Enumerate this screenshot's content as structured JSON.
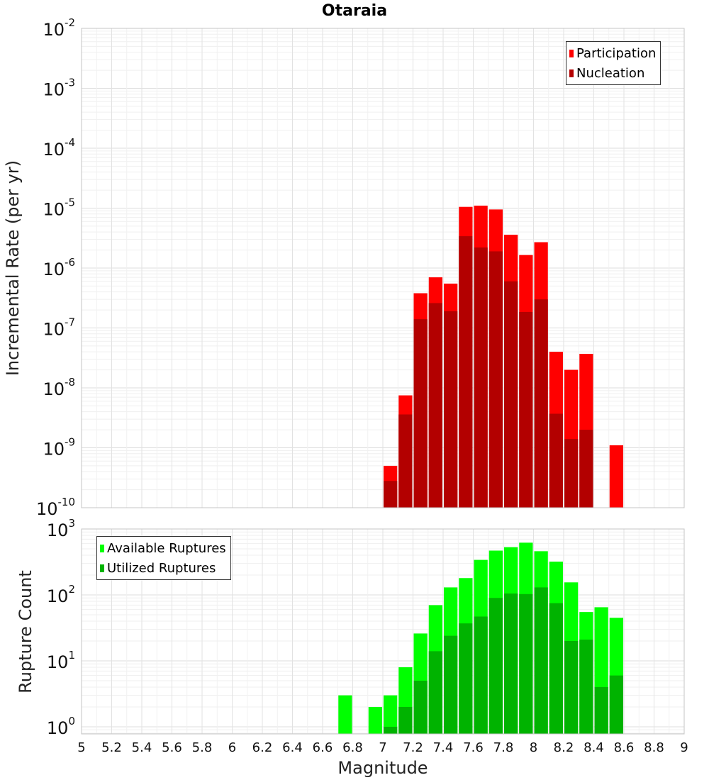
{
  "chart_data": [
    {
      "type": "bar",
      "scale": "log",
      "title": "Otaraia",
      "ylabel": "Incremental Rate (per yr)",
      "xlabel": "",
      "xlim": [
        5,
        9
      ],
      "ylim": [
        1e-10,
        0.01
      ],
      "y_ticks": [
        {
          "base": "10",
          "exp": "-10",
          "v": 1e-10
        },
        {
          "base": "10",
          "exp": "-9",
          "v": 1e-09
        },
        {
          "base": "10",
          "exp": "-8",
          "v": 1e-08
        },
        {
          "base": "10",
          "exp": "-7",
          "v": 1e-07
        },
        {
          "base": "10",
          "exp": "-6",
          "v": 1e-06
        },
        {
          "base": "10",
          "exp": "-5",
          "v": 1e-05
        },
        {
          "base": "10",
          "exp": "-4",
          "v": 0.0001
        },
        {
          "base": "10",
          "exp": "-3",
          "v": 0.001
        },
        {
          "base": "10",
          "exp": "-2",
          "v": 0.01
        }
      ],
      "legend_position": "top-right",
      "bin_width": 0.1,
      "series": [
        {
          "name": "Participation",
          "color": "#ff0000",
          "x": [
            7.05,
            7.15,
            7.25,
            7.35,
            7.45,
            7.55,
            7.65,
            7.75,
            7.85,
            7.95,
            8.05,
            8.15,
            8.25,
            8.35,
            8.55
          ],
          "values": [
            5e-10,
            7.5e-09,
            3.8e-07,
            7e-07,
            5.5e-07,
            1.05e-05,
            1.1e-05,
            9.5e-06,
            3.6e-06,
            1.65e-06,
            2.7e-06,
            4e-08,
            2e-08,
            3.7e-08,
            1.1e-09
          ]
        },
        {
          "name": "Nucleation",
          "color": "#b30000",
          "x": [
            7.05,
            7.15,
            7.25,
            7.35,
            7.45,
            7.55,
            7.65,
            7.75,
            7.85,
            7.95,
            8.05,
            8.15,
            8.25,
            8.35
          ],
          "values": [
            2.8e-10,
            3.6e-09,
            1.4e-07,
            2.6e-07,
            1.9e-07,
            3.4e-06,
            2.2e-06,
            1.9e-06,
            6e-07,
            1.85e-07,
            3e-07,
            3.7e-09,
            1.4e-09,
            2e-09
          ]
        }
      ]
    },
    {
      "type": "bar",
      "scale": "log",
      "title": "",
      "ylabel": "Rupture Count",
      "xlabel": "Magnitude",
      "xlim": [
        5,
        9
      ],
      "ylim": [
        0.78,
        1000
      ],
      "x_ticks": [
        "5",
        "5.2",
        "5.4",
        "5.6",
        "5.8",
        "6",
        "6.2",
        "6.4",
        "6.6",
        "6.8",
        "7",
        "7.2",
        "7.4",
        "7.6",
        "7.8",
        "8",
        "8.2",
        "8.4",
        "8.6",
        "8.8",
        "9"
      ],
      "y_ticks": [
        {
          "base": "10",
          "exp": "0",
          "v": 1
        },
        {
          "base": "10",
          "exp": "1",
          "v": 10
        },
        {
          "base": "10",
          "exp": "2",
          "v": 100
        },
        {
          "base": "10",
          "exp": "3",
          "v": 1000
        }
      ],
      "legend_position": "top-left",
      "bin_width": 0.1,
      "series": [
        {
          "name": "Available Ruptures",
          "color": "#00ff00",
          "x": [
            6.75,
            6.95,
            7.05,
            7.15,
            7.25,
            7.35,
            7.45,
            7.55,
            7.65,
            7.75,
            7.85,
            7.95,
            8.05,
            8.15,
            8.25,
            8.35,
            8.45,
            8.55
          ],
          "values": [
            3,
            2,
            3,
            8,
            26,
            70,
            130,
            180,
            340,
            470,
            530,
            620,
            460,
            320,
            155,
            55,
            65,
            45
          ]
        },
        {
          "name": "Utilized Ruptures",
          "color": "#00b300",
          "x": [
            7.05,
            7.15,
            7.25,
            7.35,
            7.45,
            7.55,
            7.65,
            7.75,
            7.85,
            7.95,
            8.05,
            8.15,
            8.25,
            8.35,
            8.45,
            8.55
          ],
          "values": [
            1,
            2,
            5,
            14,
            24,
            37,
            47,
            90,
            105,
            103,
            130,
            75,
            20,
            21,
            4,
            6
          ]
        }
      ]
    }
  ]
}
